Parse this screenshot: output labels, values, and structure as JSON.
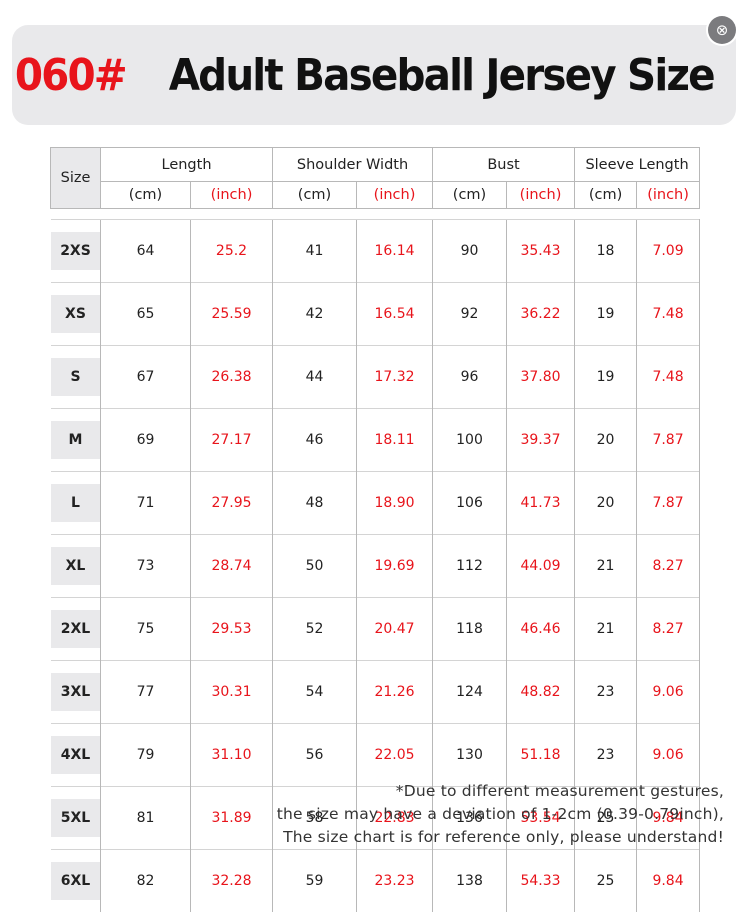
{
  "title": {
    "code": "060#",
    "text": "Adult Baseball Jersey Size"
  },
  "close_button": {
    "symbol": "⊗",
    "icon": "close-icon"
  },
  "table": {
    "size_header": "Size",
    "groups": [
      "Length",
      "Shoulder Width",
      "Bust",
      "Sleeve Length"
    ],
    "units": {
      "cm": "(cm)",
      "inch": "(inch)"
    },
    "rows": [
      {
        "size": "2XS",
        "length_cm": "64",
        "length_in": "25.2",
        "shoulder_cm": "41",
        "shoulder_in": "16.14",
        "bust_cm": "90",
        "bust_in": "35.43",
        "sleeve_cm": "18",
        "sleeve_in": "7.09"
      },
      {
        "size": "XS",
        "length_cm": "65",
        "length_in": "25.59",
        "shoulder_cm": "42",
        "shoulder_in": "16.54",
        "bust_cm": "92",
        "bust_in": "36.22",
        "sleeve_cm": "19",
        "sleeve_in": "7.48"
      },
      {
        "size": "S",
        "length_cm": "67",
        "length_in": "26.38",
        "shoulder_cm": "44",
        "shoulder_in": "17.32",
        "bust_cm": "96",
        "bust_in": "37.80",
        "sleeve_cm": "19",
        "sleeve_in": "7.48"
      },
      {
        "size": "M",
        "length_cm": "69",
        "length_in": "27.17",
        "shoulder_cm": "46",
        "shoulder_in": "18.11",
        "bust_cm": "100",
        "bust_in": "39.37",
        "sleeve_cm": "20",
        "sleeve_in": "7.87"
      },
      {
        "size": "L",
        "length_cm": "71",
        "length_in": "27.95",
        "shoulder_cm": "48",
        "shoulder_in": "18.90",
        "bust_cm": "106",
        "bust_in": "41.73",
        "sleeve_cm": "20",
        "sleeve_in": "7.87"
      },
      {
        "size": "XL",
        "length_cm": "73",
        "length_in": "28.74",
        "shoulder_cm": "50",
        "shoulder_in": "19.69",
        "bust_cm": "112",
        "bust_in": "44.09",
        "sleeve_cm": "21",
        "sleeve_in": "8.27"
      },
      {
        "size": "2XL",
        "length_cm": "75",
        "length_in": "29.53",
        "shoulder_cm": "52",
        "shoulder_in": "20.47",
        "bust_cm": "118",
        "bust_in": "46.46",
        "sleeve_cm": "21",
        "sleeve_in": "8.27"
      },
      {
        "size": "3XL",
        "length_cm": "77",
        "length_in": "30.31",
        "shoulder_cm": "54",
        "shoulder_in": "21.26",
        "bust_cm": "124",
        "bust_in": "48.82",
        "sleeve_cm": "23",
        "sleeve_in": "9.06"
      },
      {
        "size": "4XL",
        "length_cm": "79",
        "length_in": "31.10",
        "shoulder_cm": "56",
        "shoulder_in": "22.05",
        "bust_cm": "130",
        "bust_in": "51.18",
        "sleeve_cm": "23",
        "sleeve_in": "9.06"
      },
      {
        "size": "5XL",
        "length_cm": "81",
        "length_in": "31.89",
        "shoulder_cm": "58",
        "shoulder_in": "22.83",
        "bust_cm": "136",
        "bust_in": "53.54",
        "sleeve_cm": "25",
        "sleeve_in": "9.84"
      },
      {
        "size": "6XL",
        "length_cm": "82",
        "length_in": "32.28",
        "shoulder_cm": "59",
        "shoulder_in": "23.23",
        "bust_cm": "138",
        "bust_in": "54.33",
        "sleeve_cm": "25",
        "sleeve_in": "9.84"
      }
    ]
  },
  "footnote": [
    "*Due to different measurement gestures,",
    "the size may have a deviation of 1-2cm (0.39-0.79inch),",
    "The size chart is for reference only, please understand!"
  ],
  "colors": {
    "accent_red": "#e8141b",
    "banner_gray": "#e9e9eb",
    "close_gray": "#7b7b7e"
  }
}
